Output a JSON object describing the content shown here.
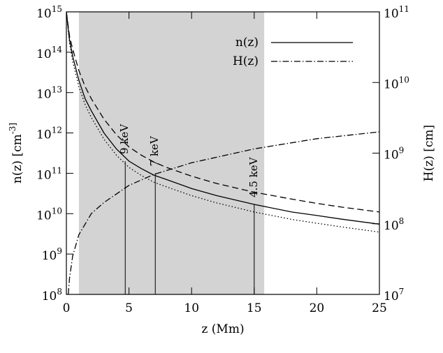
{
  "chart_data": {
    "type": "line",
    "x_label": "z (Mm)",
    "y_label": "n(z) [cm^-3]",
    "y2_label": "H(z) [cm]",
    "xlim": [
      0,
      25
    ],
    "xticks": [
      0,
      5,
      10,
      15,
      20,
      25
    ],
    "ylim": [
      100000000.0,
      1000000000000000.0
    ],
    "log_y": true,
    "yticks": [
      {
        "value": 100000000.0,
        "label": "10^8"
      },
      {
        "value": 1000000000.0,
        "label": "10^9"
      },
      {
        "value": 10000000000.0,
        "label": "10^10"
      },
      {
        "value": 100000000000.0,
        "label": "10^11"
      },
      {
        "value": 1000000000000.0,
        "label": "10^12"
      },
      {
        "value": 10000000000000.0,
        "label": "10^13"
      },
      {
        "value": 100000000000000.0,
        "label": "10^14"
      },
      {
        "value": 1000000000000000.0,
        "label": "10^15"
      }
    ],
    "y2lim": [
      10000000.0,
      100000000000.0
    ],
    "log_y2": true,
    "y2ticks": [
      {
        "value": 10000000.0,
        "label": "10^7"
      },
      {
        "value": 100000000.0,
        "label": "10^8"
      },
      {
        "value": 1000000000.0,
        "label": "10^9"
      },
      {
        "value": 10000000000.0,
        "label": "10^10"
      },
      {
        "value": 100000000000.0,
        "label": "10^11"
      }
    ],
    "shade": [
      1,
      15.8
    ],
    "shade_color": "#d3d3d3",
    "legend": "upper right",
    "x": [
      0,
      0.25,
      0.5,
      1,
      1.5,
      2,
      3,
      4,
      5,
      6,
      7,
      8,
      10,
      12,
      15,
      18,
      20,
      22,
      25
    ],
    "series": [
      {
        "name": "n(z)",
        "color": "#000000",
        "style": "solid",
        "values": [
          1000000000000000.0,
          200000000000000.0,
          80000000000000.0,
          20000000000000.0,
          7000000000000.0,
          3500000000000.0,
          1000000000000.0,
          400000000000.0,
          200000000000.0,
          130000000000.0,
          90000000000.0,
          70000000000.0,
          42000000000.0,
          28000000000.0,
          17000000000.0,
          11000000000.0,
          9000000000.0,
          7300000000.0,
          5500000000.0
        ]
      },
      {
        "name": "H(z)",
        "color": "#000000",
        "style": "dashdot",
        "axis": "y2",
        "x": [
          0.15,
          0.25,
          0.5,
          1,
          2,
          3,
          5,
          7,
          10,
          15,
          20,
          25
        ],
        "values": [
          10000000.0,
          17000000.0,
          35000000.0,
          70000000.0,
          140000000.0,
          200000000.0,
          350000000.0,
          500000000.0,
          730000000.0,
          1150000000.0,
          1600000000.0,
          2000000000.0
        ]
      },
      {
        "color": "#000000",
        "style": "dashed",
        "values": [
          1000000000000000.0,
          250000000000000.0,
          120000000000000.0,
          35000000000000.0,
          14000000000000.0,
          7000000000000.0,
          2200000000000.0,
          900000000000.0,
          450000000000.0,
          280000000000.0,
          190000000000.0,
          140000000000.0,
          85000000000.0,
          56000000000.0,
          34000000000.0,
          23000000000.0,
          18000000000.0,
          14500000000.0,
          11000000000.0
        ]
      },
      {
        "color": "#000000",
        "style": "dotted",
        "values": [
          1000000000000000.0,
          170000000000000.0,
          60000000000000.0,
          14000000000000.0,
          5000000000000.0,
          2400000000000.0,
          700000000000.0,
          280000000000.0,
          140000000000.0,
          88000000000.0,
          60000000000.0,
          46000000000.0,
          28000000000.0,
          18500000000.0,
          11000000000.0,
          7200000000.0,
          5800000000.0,
          4700000000.0,
          3500000000.0
        ]
      }
    ],
    "annotations": [
      {
        "text": "9 keV",
        "x": 4.7,
        "y": 200000000000.0
      },
      {
        "text": "7 keV",
        "x": 7.1,
        "y": 100000000000.0
      },
      {
        "text": "4.5 keV",
        "x": 15,
        "y": 17000000000.0
      }
    ]
  }
}
